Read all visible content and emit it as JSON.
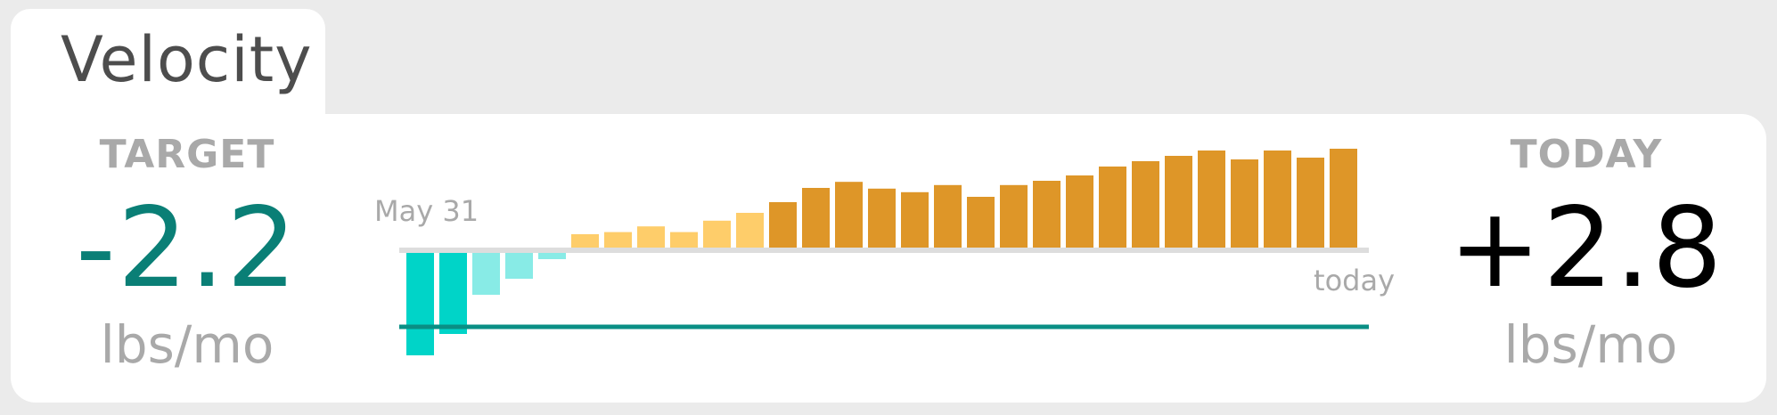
{
  "widget": {
    "title": "Velocity"
  },
  "target": {
    "label": "TARGET",
    "value": "-2.2",
    "unit": "lbs/mo",
    "color": "#0a7f76"
  },
  "today": {
    "label": "TODAY",
    "value": "+2.8",
    "unit": "lbs/mo",
    "color": "#000000"
  },
  "chart_data": {
    "type": "bar",
    "start_label": "May 31",
    "end_label": "today",
    "target_line": -2.2,
    "ylim": [
      -3.0,
      2.8
    ],
    "values": [
      -3.0,
      -2.4,
      -1.3,
      -0.85,
      -0.3,
      0.4,
      0.46,
      0.62,
      0.46,
      0.78,
      1.0,
      1.3,
      1.7,
      1.87,
      1.68,
      1.58,
      1.78,
      1.45,
      1.78,
      1.9,
      2.05,
      2.3,
      2.45,
      2.6,
      2.75,
      2.5,
      2.75,
      2.55,
      2.8
    ],
    "colors": {
      "negative_strong": "#00d4c8",
      "negative_light": "#88ebe6",
      "positive_light": "#fecd6a",
      "positive_strong": "#de9628",
      "baseline": "#dddddd",
      "target_line": "#0a8f85"
    }
  }
}
